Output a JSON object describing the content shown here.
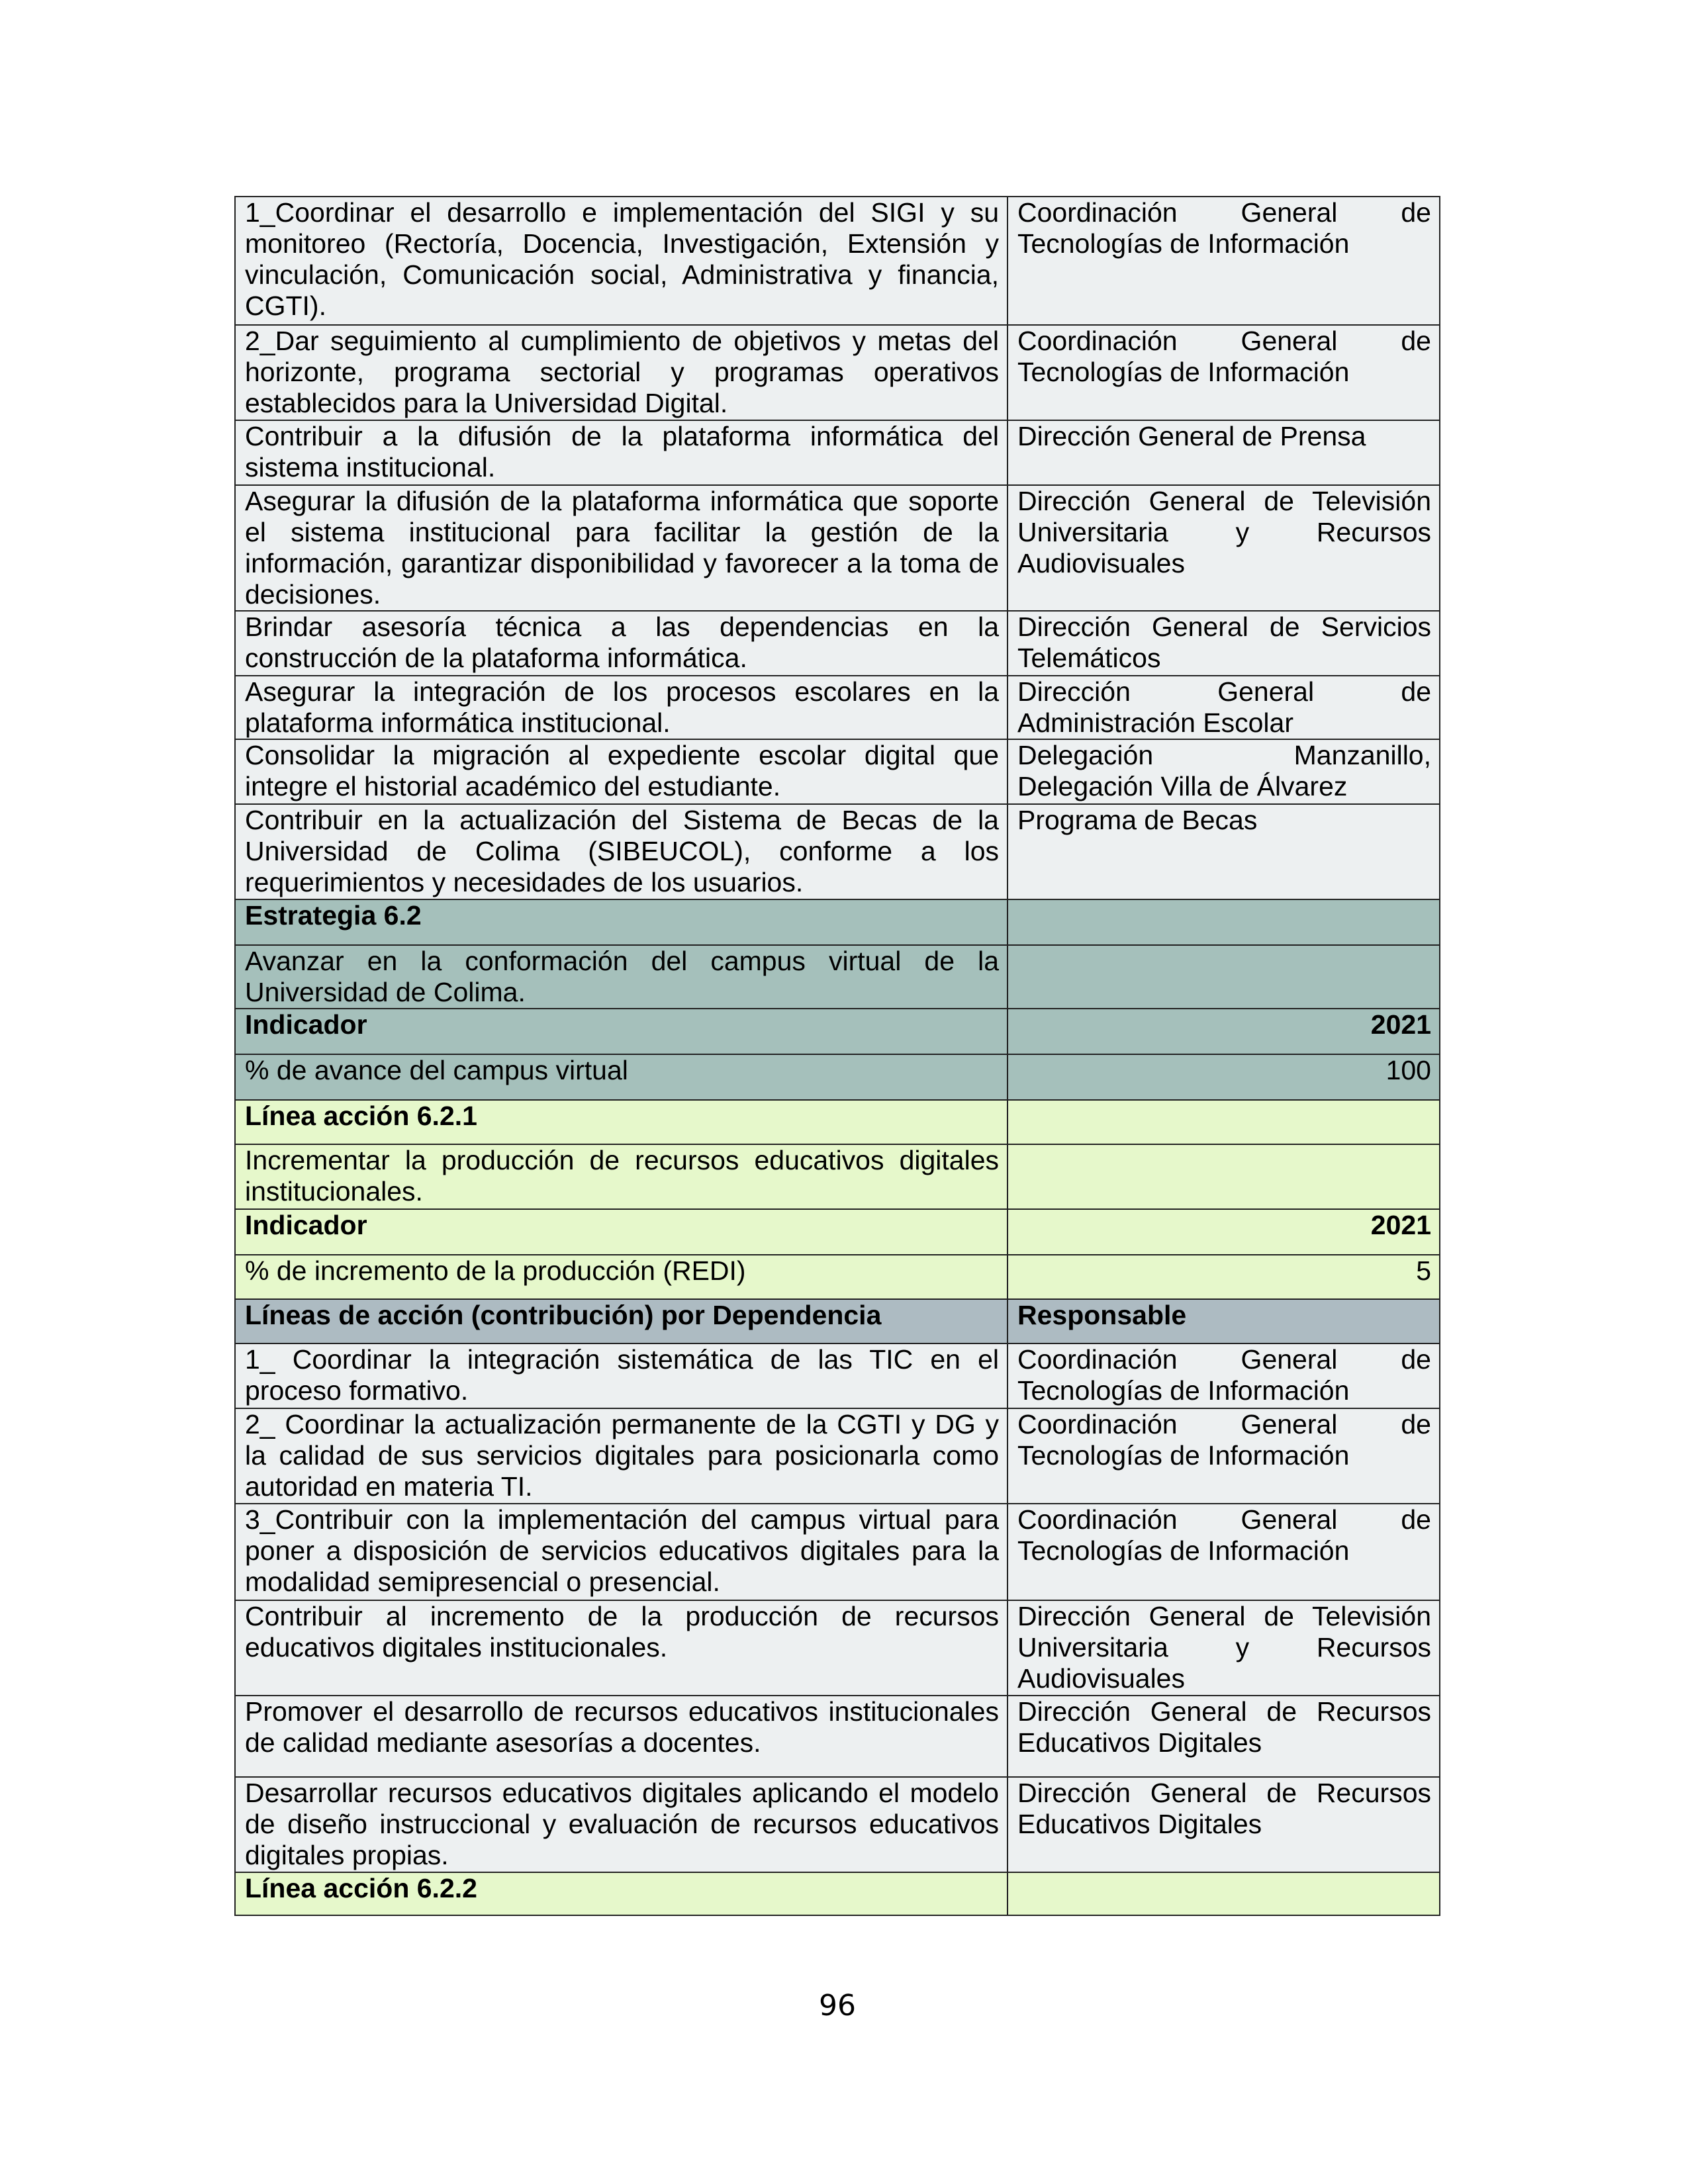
{
  "rows": [
    {
      "style": "gray",
      "left": "1_Coordinar el desarrollo e implementación del SIGI y su monitoreo (Rectoría, Docencia, Investigación, Extensión y vinculación, Comunicación social, Administrativa y financia, CGTI).",
      "right": "Coordinación General de Tecnologías de Información"
    },
    {
      "style": "gray",
      "left": "2_Dar seguimiento  al cumplimiento de objetivos y metas del horizonte, programa sectorial y programas operativos establecidos para la Universidad Digital.",
      "right": "Coordinación General de Tecnologías de Información"
    },
    {
      "style": "gray",
      "left": "Contribuir a la difusión de la plataforma informática del sistema institucional.",
      "right": "Dirección General de Prensa"
    },
    {
      "style": "gray",
      "left": "Asegurar la difusión de la plataforma informática que soporte el sistema institucional para facilitar la gestión de la información, garantizar disponibilidad y favorecer a la toma de decisiones.",
      "right": "Dirección General de Televisión Universitaria y Recursos Audiovisuales"
    },
    {
      "style": "gray",
      "left": "Brindar asesoría técnica a las dependencias en la construcción de la plataforma informática.",
      "right": "Dirección General de Servicios Telemáticos"
    },
    {
      "style": "gray",
      "left": "Asegurar la integración de los procesos escolares en la plataforma informática institucional.",
      "right": "Dirección General de Administración Escolar"
    },
    {
      "style": "gray",
      "left": "Consolidar la migración al expediente escolar digital que integre el historial académico del estudiante.",
      "right": "Delegación Manzanillo, Delegación Villa de Álvarez"
    },
    {
      "style": "gray",
      "left": "Contribuir en la actualización del Sistema de Becas de la Universidad de Colima (SIBEUCOL), conforme a los requerimientos y necesidades de los usuarios.",
      "right": "Programa de Becas"
    },
    {
      "style": "teal bold",
      "left": "Estrategia 6.2",
      "right": ""
    },
    {
      "style": "teal",
      "left": "Avanzar en la conformación del campus virtual de la Universidad de Colima.",
      "right": ""
    },
    {
      "style": "teal bold",
      "left": "Indicador",
      "right": "2021",
      "align": "right"
    },
    {
      "style": "teal",
      "left": "% de avance del campus virtual",
      "right": "100",
      "align": "right"
    },
    {
      "style": "green bold",
      "left": "Línea acción 6.2.1",
      "right": ""
    },
    {
      "style": "green",
      "left": "Incrementar la producción de recursos educativos digitales institucionales.",
      "right": ""
    },
    {
      "style": "green bold",
      "left": "Indicador",
      "right": "2021",
      "align": "right"
    },
    {
      "style": "green",
      "left": "% de incremento de la producción (REDI)",
      "right": "5",
      "align": "right"
    },
    {
      "style": "head bold",
      "left": "Líneas de acción (contribución) por Dependencia",
      "right": "Responsable"
    },
    {
      "style": "gray",
      "left": "1_ Coordinar la integración sistemática de las TIC en el proceso formativo.",
      "right": "Coordinación General de Tecnologías de Información"
    },
    {
      "style": "gray",
      "left": "2_ Coordinar la actualización permanente de la CGTI y DG y la calidad de sus servicios digitales para posicionarla como autoridad en materia TI.",
      "right": "Coordinación General de Tecnologías de Información"
    },
    {
      "style": "gray",
      "left": "3_Contribuir con la implementación del campus virtual para poner a disposición de servicios educativos digitales para la modalidad semipresencial o presencial.",
      "right": "Coordinación General de Tecnologías de Información"
    },
    {
      "style": "gray",
      "left": "Contribuir al incremento de la producción de recursos educativos digitales institucionales.",
      "right": "Dirección General de Televisión Universitaria y Recursos Audiovisuales"
    },
    {
      "style": "gray",
      "left": "Promover el desarrollo de recursos educativos institucionales de calidad mediante asesorías a docentes.",
      "right": "Dirección General de Recursos Educativos Digitales"
    },
    {
      "style": "gray",
      "left": "Desarrollar recursos educativos digitales aplicando el modelo de diseño instruccional y evaluación de recursos educativos digitales propias.",
      "right": "Dirección General de Recursos Educativos Digitales"
    },
    {
      "style": "green bold",
      "left": "Línea acción 6.2.2",
      "right": ""
    }
  ],
  "page_number": "96",
  "colors": {
    "gray": "#edf0f1",
    "teal": "#a5c0bb",
    "green": "#e6f8cb",
    "header": "#adbbc2"
  }
}
